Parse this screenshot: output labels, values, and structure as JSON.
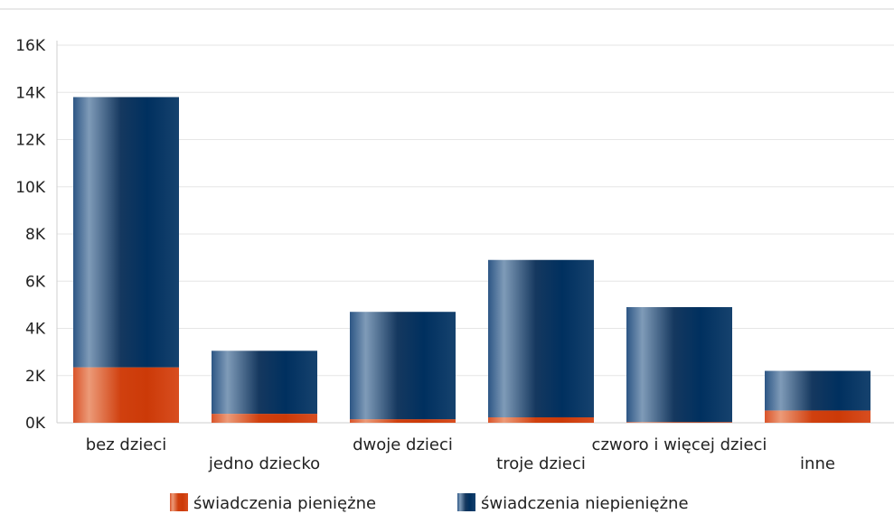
{
  "chart_data": {
    "type": "bar",
    "stacked": true,
    "categories": [
      "bez dzieci",
      "jedno dziecko",
      "dwoje dzieci",
      "troje dzieci",
      "czworo i więcej dzieci",
      "inne"
    ],
    "series": [
      {
        "name": "świadczenia pieniężne",
        "values": [
          2350,
          380,
          150,
          230,
          30,
          520
        ],
        "color": "#d14a1e"
      },
      {
        "name": "świadczenia niepieniężne",
        "values": [
          11450,
          2670,
          4550,
          6670,
          4870,
          1680
        ],
        "color": "#1e4a7a"
      }
    ],
    "y_ticks": [
      "0K",
      "2K",
      "4K",
      "6K",
      "8K",
      "10K",
      "12K",
      "14K",
      "16K"
    ],
    "ylim": [
      0,
      16000
    ],
    "grid": true,
    "legend_position": "bottom"
  }
}
